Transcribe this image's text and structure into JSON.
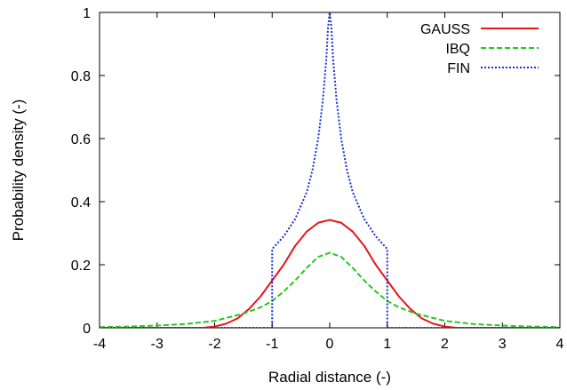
{
  "chart_data": {
    "type": "line",
    "title": "",
    "xlabel": "Radial distance (-)",
    "ylabel": "Probability density (-)",
    "xlim": [
      -4,
      4
    ],
    "ylim": [
      0,
      1
    ],
    "x_ticks": [
      "-4",
      "-3",
      "-2",
      "-1",
      "0",
      "1",
      "2",
      "3",
      "4"
    ],
    "y_ticks": [
      "0",
      "0.2",
      "0.4",
      "0.6",
      "0.8",
      "1"
    ],
    "grid": false,
    "legend_position": "top-right",
    "series": [
      {
        "name": "GAUSS",
        "color": "#e8141c",
        "dash": "solid",
        "x": [
          -4,
          -3,
          -2.2,
          -2,
          -1.8,
          -1.6,
          -1.4,
          -1.2,
          -1,
          -0.8,
          -0.6,
          -0.4,
          -0.2,
          0,
          0.2,
          0.4,
          0.6,
          0.8,
          1,
          1.2,
          1.4,
          1.6,
          1.8,
          2,
          2.2,
          3,
          4
        ],
        "y": [
          0,
          0,
          0.0,
          0.004,
          0.013,
          0.03,
          0.06,
          0.1,
          0.15,
          0.2,
          0.26,
          0.305,
          0.333,
          0.342,
          0.333,
          0.305,
          0.26,
          0.2,
          0.15,
          0.1,
          0.06,
          0.03,
          0.013,
          0.004,
          0.0,
          0,
          0
        ]
      },
      {
        "name": "IBQ",
        "color": "#22c81e",
        "dash": "dashed",
        "x": [
          -4,
          -3.5,
          -3,
          -2.5,
          -2,
          -1.5,
          -1.2,
          -1,
          -0.8,
          -0.6,
          -0.4,
          -0.2,
          0,
          0.2,
          0.4,
          0.6,
          0.8,
          1,
          1.2,
          1.5,
          2,
          2.5,
          3,
          3.5,
          4
        ],
        "y": [
          0.002,
          0.004,
          0.007,
          0.012,
          0.022,
          0.045,
          0.065,
          0.085,
          0.115,
          0.15,
          0.19,
          0.225,
          0.238,
          0.225,
          0.19,
          0.15,
          0.115,
          0.085,
          0.065,
          0.045,
          0.022,
          0.012,
          0.007,
          0.004,
          0.002
        ]
      },
      {
        "name": "FIN",
        "color": "#1a2fd0",
        "dash": "dotted",
        "x": [
          -4,
          -1,
          -1,
          -0.8,
          -0.6,
          -0.4,
          -0.3,
          -0.2,
          -0.12,
          -0.06,
          -0.03,
          0,
          0.03,
          0.06,
          0.12,
          0.2,
          0.3,
          0.4,
          0.6,
          0.8,
          1,
          1,
          4
        ],
        "y": [
          0,
          0,
          0.25,
          0.29,
          0.345,
          0.43,
          0.5,
          0.6,
          0.72,
          0.85,
          0.95,
          1.0,
          0.95,
          0.85,
          0.72,
          0.6,
          0.5,
          0.43,
          0.345,
          0.29,
          0.25,
          0,
          0
        ]
      }
    ]
  }
}
